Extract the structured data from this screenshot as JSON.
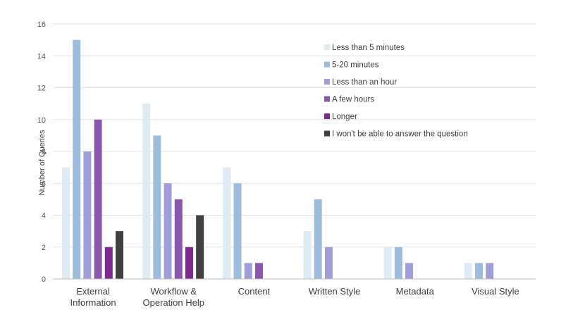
{
  "chart_data": {
    "type": "bar",
    "ylabel": "Number of Queries",
    "xlabel": "",
    "ylim": [
      0,
      16
    ],
    "yticks": [
      0,
      2,
      4,
      6,
      8,
      10,
      12,
      14,
      16
    ],
    "grid": true,
    "legend_position": "top-right",
    "categories": [
      [
        "External",
        "Information"
      ],
      [
        "Workflow &",
        "Operation Help"
      ],
      [
        "Content"
      ],
      [
        "Written Style"
      ],
      [
        "Metadata"
      ],
      [
        "Visual Style"
      ]
    ],
    "series": [
      {
        "name": "Less than 5 minutes",
        "color": "#deebf3",
        "values": [
          7,
          11,
          7,
          3,
          2,
          1
        ]
      },
      {
        "name": "5-20 minutes",
        "color": "#9dbcdc",
        "values": [
          15,
          9,
          6,
          5,
          2,
          1
        ]
      },
      {
        "name": "Less than an hour",
        "color": "#a09ed8",
        "values": [
          8,
          6,
          1,
          2,
          1,
          1
        ]
      },
      {
        "name": "A few hours",
        "color": "#8a57ad",
        "values": [
          10,
          5,
          1,
          0,
          0,
          0
        ]
      },
      {
        "name": "Longer",
        "color": "#7c2a8e",
        "values": [
          2,
          2,
          0,
          0,
          0,
          0
        ]
      },
      {
        "name": "I won't be able to answer the question",
        "color": "#404040",
        "values": [
          3,
          4,
          0,
          0,
          0,
          0
        ]
      }
    ]
  }
}
